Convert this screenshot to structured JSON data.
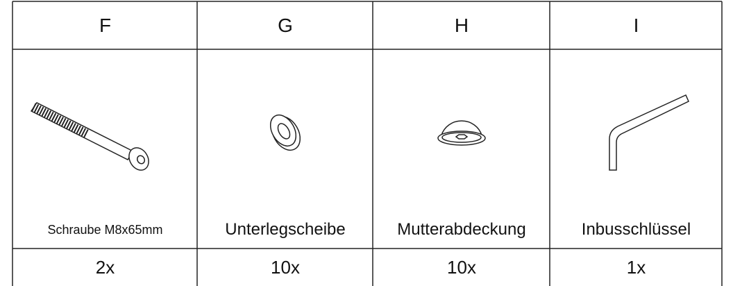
{
  "table": {
    "header": [
      "F",
      "G",
      "H",
      "I"
    ],
    "names": [
      "Schraube M8x65mm",
      "Unterlegscheibe",
      "Mutterabdeckung",
      "Inbusschlüssel"
    ],
    "quantities": [
      "2x",
      "10x",
      "10x",
      "1x"
    ]
  }
}
